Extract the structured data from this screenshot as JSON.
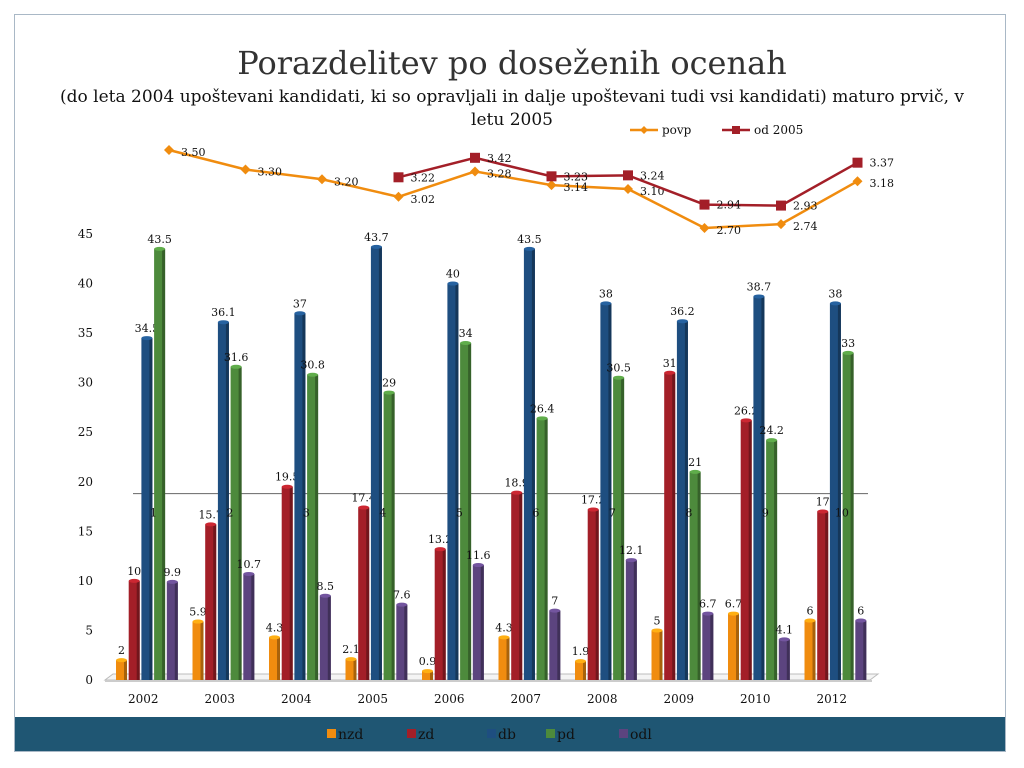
{
  "title": "Porazdelitev po doseženih ocenah",
  "subtitle": "(do leta 2004 upoštevani kandidati, ki so opravljali in dalje upoštevani tudi vsi kandidati) maturo prvič, v letu 2005",
  "chart_data": [
    {
      "type": "bar",
      "categories": [
        "2002",
        "2003",
        "2004",
        "2005",
        "2006",
        "2007",
        "2008",
        "2009",
        "2010",
        "2012"
      ],
      "ylim": [
        0,
        45
      ],
      "yticks": [
        0,
        5,
        10,
        15,
        20,
        25,
        30,
        35,
        40,
        45
      ],
      "legend_position": "bottom",
      "series": [
        {
          "name": "nzd",
          "color": "#f08c0f",
          "values": [
            2,
            5.9,
            4.3,
            2.1,
            0.9,
            4.3,
            1.9,
            5,
            6.7,
            6
          ]
        },
        {
          "name": "zd",
          "color": "#a31f28",
          "values": [
            10,
            15.7,
            19.5,
            17.4,
            13.2,
            18.9,
            17.2,
            31,
            26.2,
            17
          ]
        },
        {
          "name": "db",
          "color": "#1e4e80",
          "values": [
            34.5,
            36.1,
            37,
            43.7,
            40,
            43.5,
            38,
            36.2,
            38.7,
            38
          ]
        },
        {
          "name": "pd",
          "color": "#4d8a3c",
          "values": [
            43.5,
            31.6,
            30.8,
            29,
            34,
            26.4,
            30.5,
            21,
            24.2,
            33
          ]
        },
        {
          "name": "odl",
          "color": "#5c447f",
          "values": [
            9.9,
            10.7,
            8.5,
            7.6,
            11.6,
            7,
            12.1,
            6.7,
            4.1,
            6
          ]
        }
      ],
      "overlay_labels": [
        "1",
        "2",
        "3",
        "4",
        "5",
        "6",
        "7",
        "8",
        "9",
        "10"
      ],
      "reference_line": 18.8
    },
    {
      "type": "line",
      "categories": [
        "2002",
        "2003",
        "2004",
        "2005",
        "2006",
        "2007",
        "2008",
        "2009",
        "2010",
        "2012"
      ],
      "legend_position": "top-right",
      "series": [
        {
          "name": "povp",
          "color": "#f08c0f",
          "marker": "diamond",
          "values": [
            3.5,
            3.3,
            3.2,
            3.02,
            3.28,
            3.14,
            3.1,
            2.7,
            2.74,
            3.18
          ],
          "labels": [
            "3.50",
            "3.30",
            "3.20",
            "3.02",
            "3.28",
            "3.14",
            "3.10",
            "2.70",
            "2.74",
            "3.18"
          ]
        },
        {
          "name": "od 2005",
          "color": "#a31f28",
          "marker": "square",
          "values": [
            null,
            null,
            null,
            3.22,
            3.42,
            3.23,
            3.24,
            2.94,
            2.93,
            3.37
          ],
          "labels": [
            "",
            "",
            "",
            "3.22",
            "3.42",
            "3.23",
            "3.24",
            "2.94",
            "2.93",
            "3.37"
          ]
        }
      ]
    }
  ]
}
